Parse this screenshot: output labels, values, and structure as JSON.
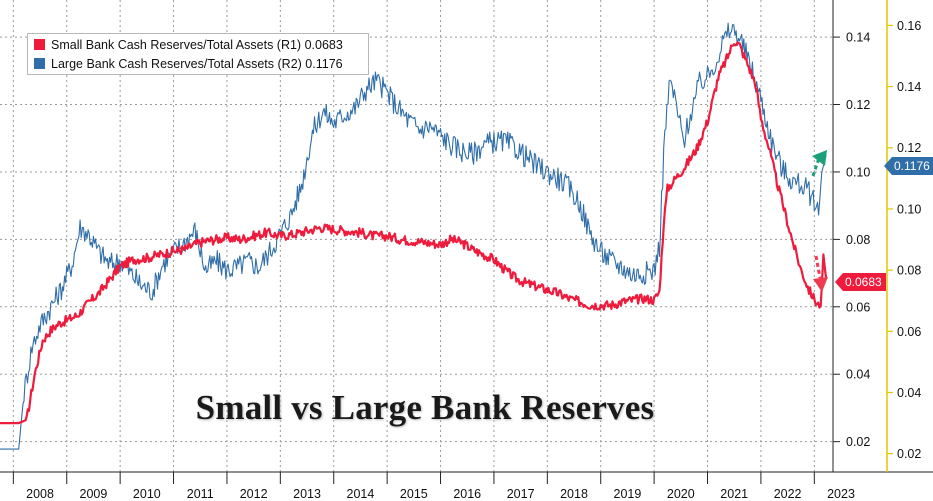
{
  "chart_data": {
    "type": "line",
    "title": "Small vs Large Bank Reserves",
    "x_ticks": [
      "2008",
      "2009",
      "2010",
      "2011",
      "2012",
      "2013",
      "2014",
      "2015",
      "2016",
      "2017",
      "2018",
      "2019",
      "2020",
      "2021",
      "2022",
      "2023"
    ],
    "x_range": [
      2007.75,
      2023.35
    ],
    "grid": true,
    "legend_position": "top-left",
    "y_axes": {
      "R1": {
        "side": "right-inner",
        "range": [
          0.011,
          0.151
        ],
        "ticks": [
          "0.02",
          "0.04",
          "0.06",
          "0.08",
          "0.10",
          "0.12",
          "0.14"
        ],
        "color": "#111111"
      },
      "R2": {
        "side": "right-outer",
        "range": [
          0.014,
          0.1683
        ],
        "ticks": [
          "0.02",
          "0.04",
          "0.06",
          "0.08",
          "0.10",
          "0.12",
          "0.14",
          "0.16"
        ],
        "color": "#111111",
        "axis_line_color": "#e0c800"
      }
    },
    "series": [
      {
        "name": "Small Bank Cash Reserves/Total Assets (R1)",
        "legend_value": "0.0683",
        "last_value_label": "0.0683",
        "axis": "R1",
        "color": "#ef1b3c",
        "points": [
          [
            2007.75,
            0.0255
          ],
          [
            2008.1,
            0.0255
          ],
          [
            2008.25,
            0.0265
          ],
          [
            2008.4,
            0.04
          ],
          [
            2008.55,
            0.05
          ],
          [
            2008.7,
            0.053
          ],
          [
            2008.85,
            0.055
          ],
          [
            2009.0,
            0.056
          ],
          [
            2009.2,
            0.0575
          ],
          [
            2009.4,
            0.061
          ],
          [
            2009.6,
            0.064
          ],
          [
            2009.8,
            0.068
          ],
          [
            2010.0,
            0.072
          ],
          [
            2010.25,
            0.074
          ],
          [
            2010.5,
            0.0745
          ],
          [
            2010.75,
            0.0755
          ],
          [
            2011.0,
            0.0765
          ],
          [
            2011.2,
            0.077
          ],
          [
            2011.4,
            0.0785
          ],
          [
            2011.6,
            0.0795
          ],
          [
            2011.8,
            0.08
          ],
          [
            2012.0,
            0.0805
          ],
          [
            2012.25,
            0.08
          ],
          [
            2012.5,
            0.081
          ],
          [
            2012.75,
            0.082
          ],
          [
            2013.0,
            0.081
          ],
          [
            2013.25,
            0.0815
          ],
          [
            2013.5,
            0.0825
          ],
          [
            2013.75,
            0.0835
          ],
          [
            2014.0,
            0.083
          ],
          [
            2014.25,
            0.0825
          ],
          [
            2014.5,
            0.082
          ],
          [
            2014.75,
            0.081
          ],
          [
            2015.0,
            0.081
          ],
          [
            2015.25,
            0.08
          ],
          [
            2015.5,
            0.0795
          ],
          [
            2015.75,
            0.079
          ],
          [
            2016.0,
            0.0785
          ],
          [
            2016.2,
            0.08
          ],
          [
            2016.4,
            0.079
          ],
          [
            2016.6,
            0.077
          ],
          [
            2016.8,
            0.0755
          ],
          [
            2017.0,
            0.074
          ],
          [
            2017.2,
            0.071
          ],
          [
            2017.4,
            0.0685
          ],
          [
            2017.6,
            0.067
          ],
          [
            2017.8,
            0.066
          ],
          [
            2018.0,
            0.065
          ],
          [
            2018.2,
            0.064
          ],
          [
            2018.4,
            0.0625
          ],
          [
            2018.6,
            0.0615
          ],
          [
            2018.8,
            0.0605
          ],
          [
            2019.0,
            0.0605
          ],
          [
            2019.2,
            0.0605
          ],
          [
            2019.4,
            0.0615
          ],
          [
            2019.6,
            0.062
          ],
          [
            2019.8,
            0.0625
          ],
          [
            2020.0,
            0.062
          ],
          [
            2020.1,
            0.0645
          ],
          [
            2020.18,
            0.085
          ],
          [
            2020.25,
            0.095
          ],
          [
            2020.4,
            0.098
          ],
          [
            2020.6,
            0.102
          ],
          [
            2020.8,
            0.107
          ],
          [
            2021.0,
            0.115
          ],
          [
            2021.2,
            0.128
          ],
          [
            2021.4,
            0.135
          ],
          [
            2021.5,
            0.139
          ],
          [
            2021.6,
            0.1375
          ],
          [
            2021.75,
            0.132
          ],
          [
            2021.9,
            0.126
          ],
          [
            2022.0,
            0.116
          ],
          [
            2022.15,
            0.107
          ],
          [
            2022.3,
            0.097
          ],
          [
            2022.45,
            0.088
          ],
          [
            2022.6,
            0.079
          ],
          [
            2022.75,
            0.071
          ],
          [
            2022.9,
            0.065
          ],
          [
            2023.05,
            0.061
          ],
          [
            2023.12,
            0.0603
          ],
          [
            2023.17,
            0.0755
          ],
          [
            2023.22,
            0.0683
          ]
        ]
      },
      {
        "name": "Large Bank Cash Reserves/Total Assets (R2)",
        "legend_value": "0.1176",
        "last_value_label": "0.1176",
        "axis": "R2",
        "color": "#2f6ea8",
        "points": [
          [
            2007.75,
            0.0215
          ],
          [
            2008.1,
            0.0215
          ],
          [
            2008.2,
            0.04
          ],
          [
            2008.35,
            0.055
          ],
          [
            2008.5,
            0.062
          ],
          [
            2008.7,
            0.068
          ],
          [
            2008.9,
            0.074
          ],
          [
            2009.1,
            0.082
          ],
          [
            2009.25,
            0.094
          ],
          [
            2009.4,
            0.092
          ],
          [
            2009.6,
            0.086
          ],
          [
            2009.8,
            0.082
          ],
          [
            2010.0,
            0.083
          ],
          [
            2010.2,
            0.079
          ],
          [
            2010.4,
            0.075
          ],
          [
            2010.6,
            0.073
          ],
          [
            2010.8,
            0.082
          ],
          [
            2011.0,
            0.086
          ],
          [
            2011.2,
            0.089
          ],
          [
            2011.4,
            0.093
          ],
          [
            2011.6,
            0.08
          ],
          [
            2011.8,
            0.083
          ],
          [
            2012.0,
            0.08
          ],
          [
            2012.2,
            0.081
          ],
          [
            2012.4,
            0.083
          ],
          [
            2012.6,
            0.081
          ],
          [
            2012.8,
            0.086
          ],
          [
            2013.0,
            0.092
          ],
          [
            2013.2,
            0.098
          ],
          [
            2013.4,
            0.108
          ],
          [
            2013.6,
            0.125
          ],
          [
            2013.8,
            0.132
          ],
          [
            2014.0,
            0.128
          ],
          [
            2014.2,
            0.131
          ],
          [
            2014.4,
            0.133
          ],
          [
            2014.6,
            0.139
          ],
          [
            2014.8,
            0.142
          ],
          [
            2015.0,
            0.138
          ],
          [
            2015.2,
            0.133
          ],
          [
            2015.4,
            0.129
          ],
          [
            2015.6,
            0.126
          ],
          [
            2015.8,
            0.127
          ],
          [
            2016.0,
            0.124
          ],
          [
            2016.2,
            0.121
          ],
          [
            2016.4,
            0.119
          ],
          [
            2016.6,
            0.118
          ],
          [
            2016.8,
            0.121
          ],
          [
            2017.0,
            0.122
          ],
          [
            2017.2,
            0.122
          ],
          [
            2017.4,
            0.12
          ],
          [
            2017.6,
            0.117
          ],
          [
            2017.8,
            0.114
          ],
          [
            2018.0,
            0.112
          ],
          [
            2018.2,
            0.11
          ],
          [
            2018.4,
            0.107
          ],
          [
            2018.6,
            0.102
          ],
          [
            2018.8,
            0.092
          ],
          [
            2019.0,
            0.086
          ],
          [
            2019.2,
            0.083
          ],
          [
            2019.4,
            0.081
          ],
          [
            2019.6,
            0.0785
          ],
          [
            2019.8,
            0.079
          ],
          [
            2020.0,
            0.08
          ],
          [
            2020.1,
            0.088
          ],
          [
            2020.2,
            0.125
          ],
          [
            2020.3,
            0.142
          ],
          [
            2020.4,
            0.135
          ],
          [
            2020.55,
            0.122
          ],
          [
            2020.7,
            0.132
          ],
          [
            2020.85,
            0.141
          ],
          [
            2021.0,
            0.143
          ],
          [
            2021.15,
            0.148
          ],
          [
            2021.3,
            0.155
          ],
          [
            2021.45,
            0.159
          ],
          [
            2021.6,
            0.156
          ],
          [
            2021.8,
            0.147
          ],
          [
            2022.0,
            0.136
          ],
          [
            2022.2,
            0.122
          ],
          [
            2022.4,
            0.113
          ],
          [
            2022.6,
            0.109
          ],
          [
            2022.8,
            0.1075
          ],
          [
            2023.0,
            0.103
          ],
          [
            2023.08,
            0.098
          ],
          [
            2023.14,
            0.112
          ],
          [
            2023.22,
            0.1176
          ]
        ]
      }
    ]
  }
}
